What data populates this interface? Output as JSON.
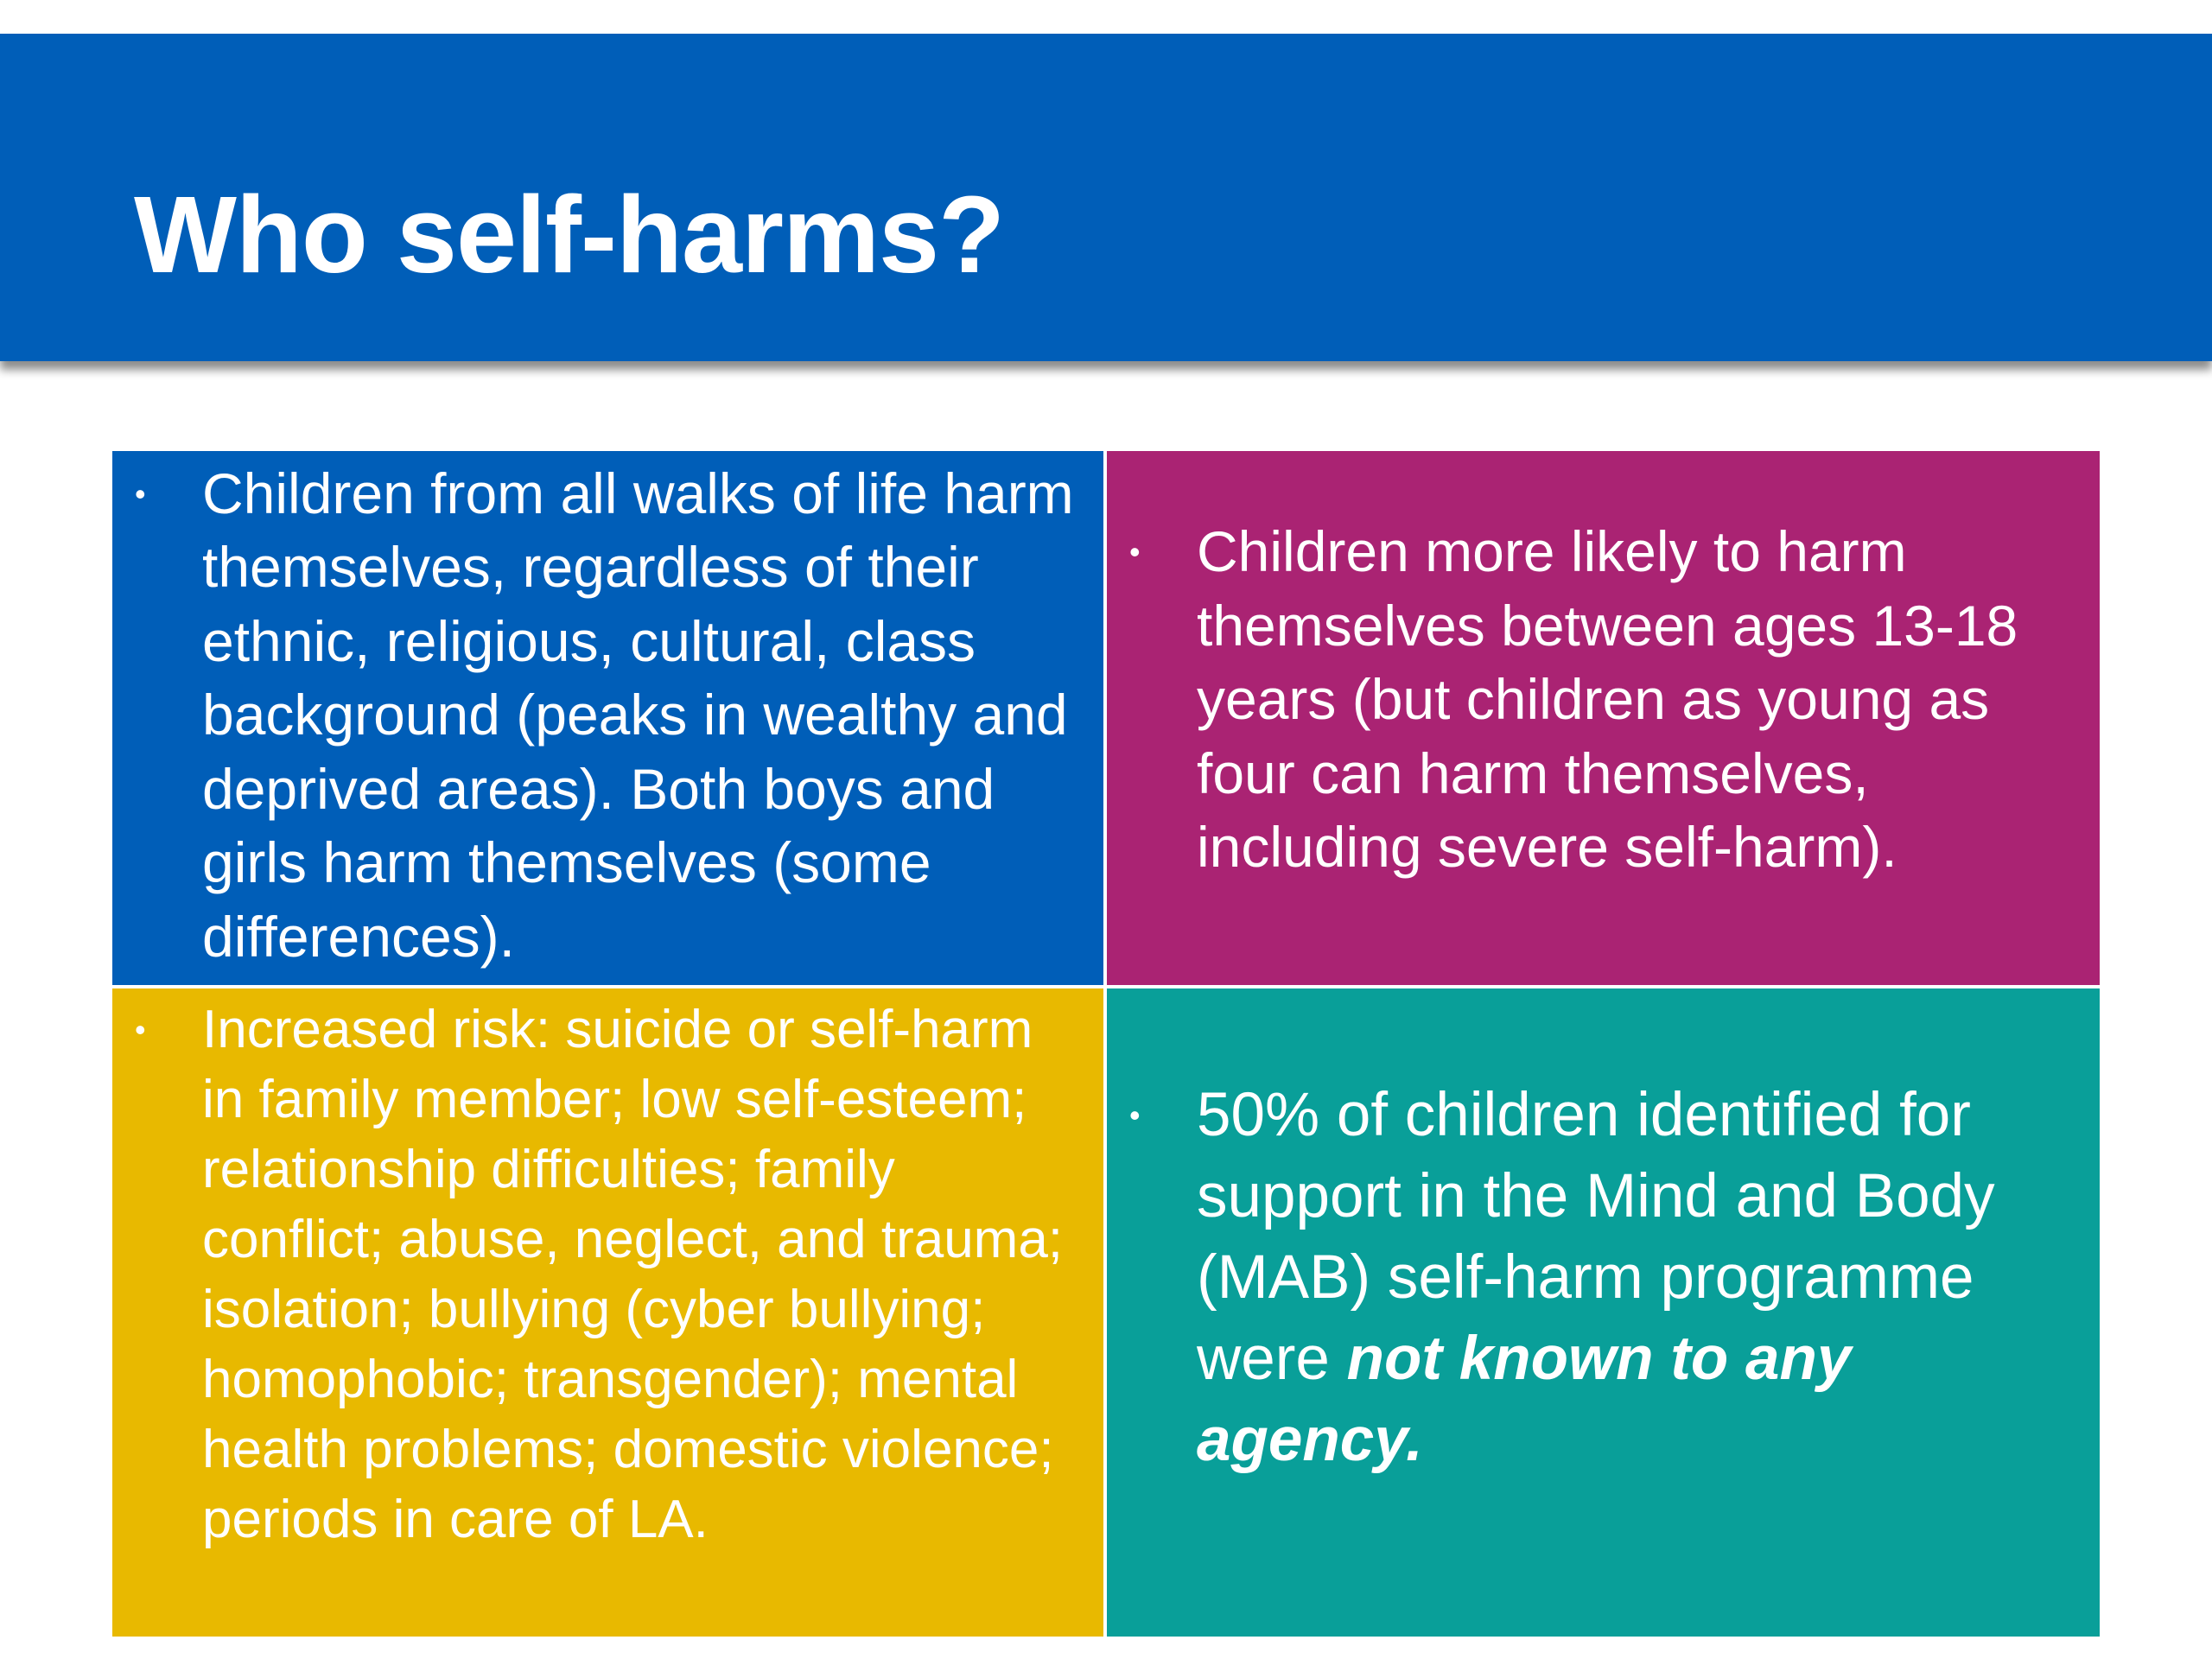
{
  "slide": {
    "title": "Who self-harms?"
  },
  "colors": {
    "title_bar": "#005eb8",
    "box_blue": "#005eb8",
    "box_magenta": "#aa2373",
    "box_yellow": "#e8b900",
    "box_teal": "#099f99",
    "text": "#ffffff"
  },
  "boxes": {
    "top_left": {
      "bullet": "•",
      "text": "Children from all walks of life harm themselves, regardless of their ethnic, religious, cultural, class background (peaks in wealthy and deprived areas). Both boys and girls harm themselves (some differences)."
    },
    "top_right": {
      "bullet": "•",
      "text": "Children more likely to harm themselves between ages 13-18 years (but children as young as four can harm themselves, including severe self-harm)."
    },
    "bottom_left": {
      "bullet": "•",
      "text": "Increased risk: suicide or self-harm in family member; low self-esteem; relationship difficulties; family conflict; abuse, neglect, and trauma; isolation; bullying (cyber bullying; homophobic; transgender); mental health problems; domestic violence; periods in care of LA."
    },
    "bottom_right": {
      "bullet": "•",
      "text_before": "50% of children identified for support in the Mind and Body (MAB) self-harm programme were ",
      "text_emphasis": "not known to any agency."
    }
  }
}
